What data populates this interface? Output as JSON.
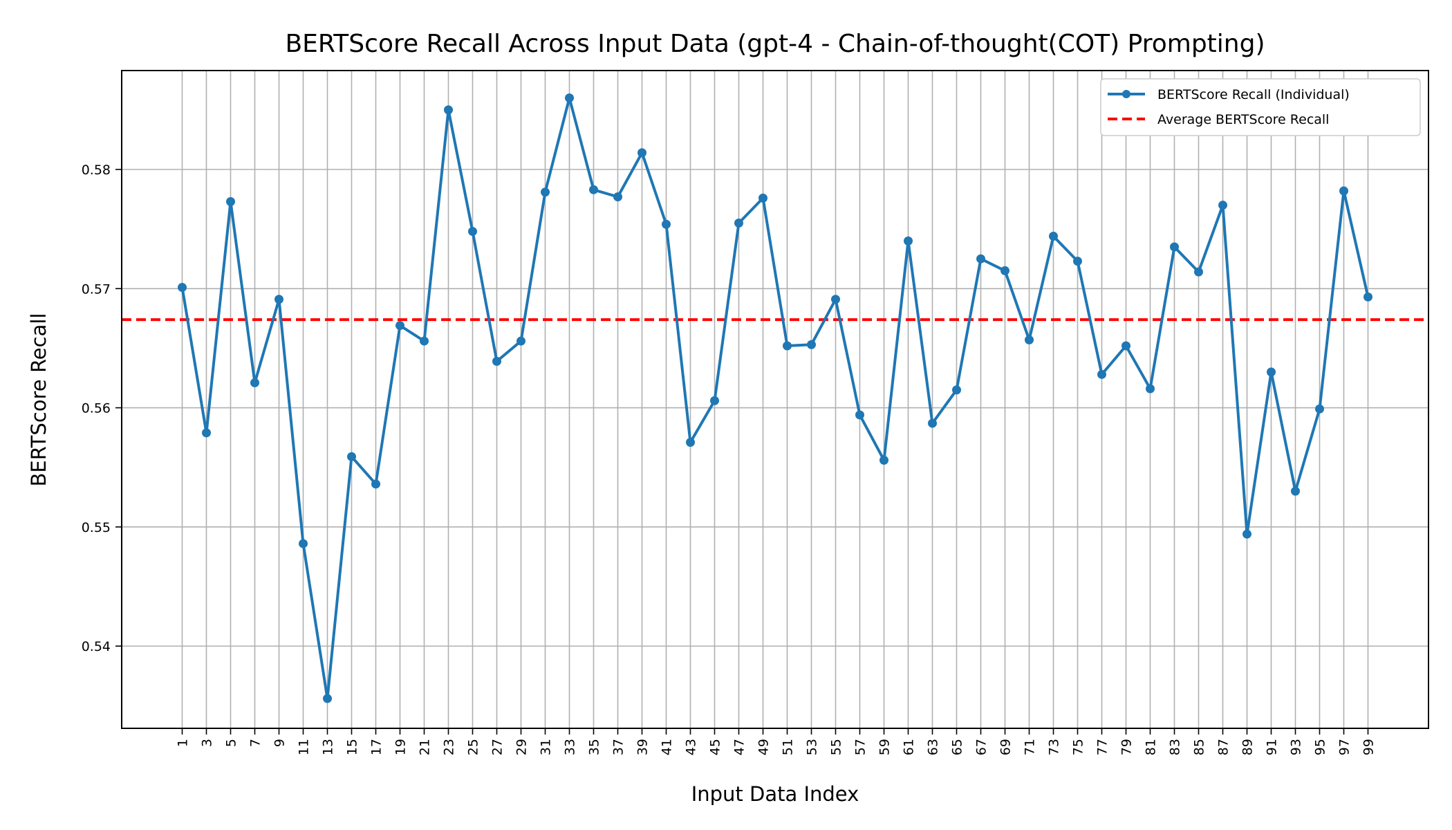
{
  "chart_data": {
    "type": "line",
    "title": "BERTScore Recall Across Input Data (gpt-4 - Chain-of-thought(COT) Prompting)",
    "xlabel": "Input Data Index",
    "ylabel": "BERTScore Recall",
    "x": [
      1,
      3,
      5,
      7,
      9,
      11,
      13,
      15,
      17,
      19,
      21,
      23,
      25,
      27,
      29,
      31,
      33,
      35,
      37,
      39,
      41,
      43,
      45,
      47,
      49,
      51,
      53,
      55,
      57,
      59,
      61,
      63,
      65,
      67,
      69,
      71,
      73,
      75,
      77,
      79,
      81,
      83,
      85,
      87,
      89,
      91,
      93,
      95,
      97,
      99
    ],
    "xticks": [
      "1",
      "3",
      "5",
      "7",
      "9",
      "11",
      "13",
      "15",
      "17",
      "19",
      "21",
      "23",
      "25",
      "27",
      "29",
      "31",
      "33",
      "35",
      "37",
      "39",
      "41",
      "43",
      "45",
      "47",
      "49",
      "51",
      "53",
      "55",
      "57",
      "59",
      "61",
      "63",
      "65",
      "67",
      "69",
      "71",
      "73",
      "75",
      "77",
      "79",
      "81",
      "83",
      "85",
      "87",
      "89",
      "91",
      "93",
      "95",
      "97",
      "99"
    ],
    "yticks": [
      0.54,
      0.55,
      0.56,
      0.57,
      0.58
    ],
    "ytick_labels": [
      "0.54",
      "0.55",
      "0.56",
      "0.57",
      "0.58"
    ],
    "xlim": [
      -4,
      104
    ],
    "ylim": [
      0.5331,
      0.5883
    ],
    "grid": true,
    "legend_position": "top-right",
    "series": [
      {
        "name": "BERTScore Recall (Individual)",
        "color": "#1f77b4",
        "style": "solid-with-markers",
        "values": [
          0.5701,
          0.5579,
          0.5773,
          0.5621,
          0.5691,
          0.5486,
          0.5356,
          0.5559,
          0.5536,
          0.5669,
          0.5656,
          0.585,
          0.5748,
          0.5639,
          0.5656,
          0.5781,
          0.586,
          0.5783,
          0.5777,
          0.5814,
          0.5754,
          0.5571,
          0.5606,
          0.5755,
          0.5776,
          0.5652,
          0.5653,
          0.5691,
          0.5594,
          0.5556,
          0.574,
          0.5587,
          0.5615,
          0.5725,
          0.5715,
          0.5657,
          0.5744,
          0.5723,
          0.5628,
          0.5652,
          0.5616,
          0.5735,
          0.5714,
          0.577,
          0.5494,
          0.563,
          0.553,
          0.5599,
          0.5782,
          0.5693
        ]
      },
      {
        "name": "Average BERTScore Recall",
        "color": "#ff0000",
        "style": "dashed",
        "value": 0.5674
      }
    ]
  }
}
